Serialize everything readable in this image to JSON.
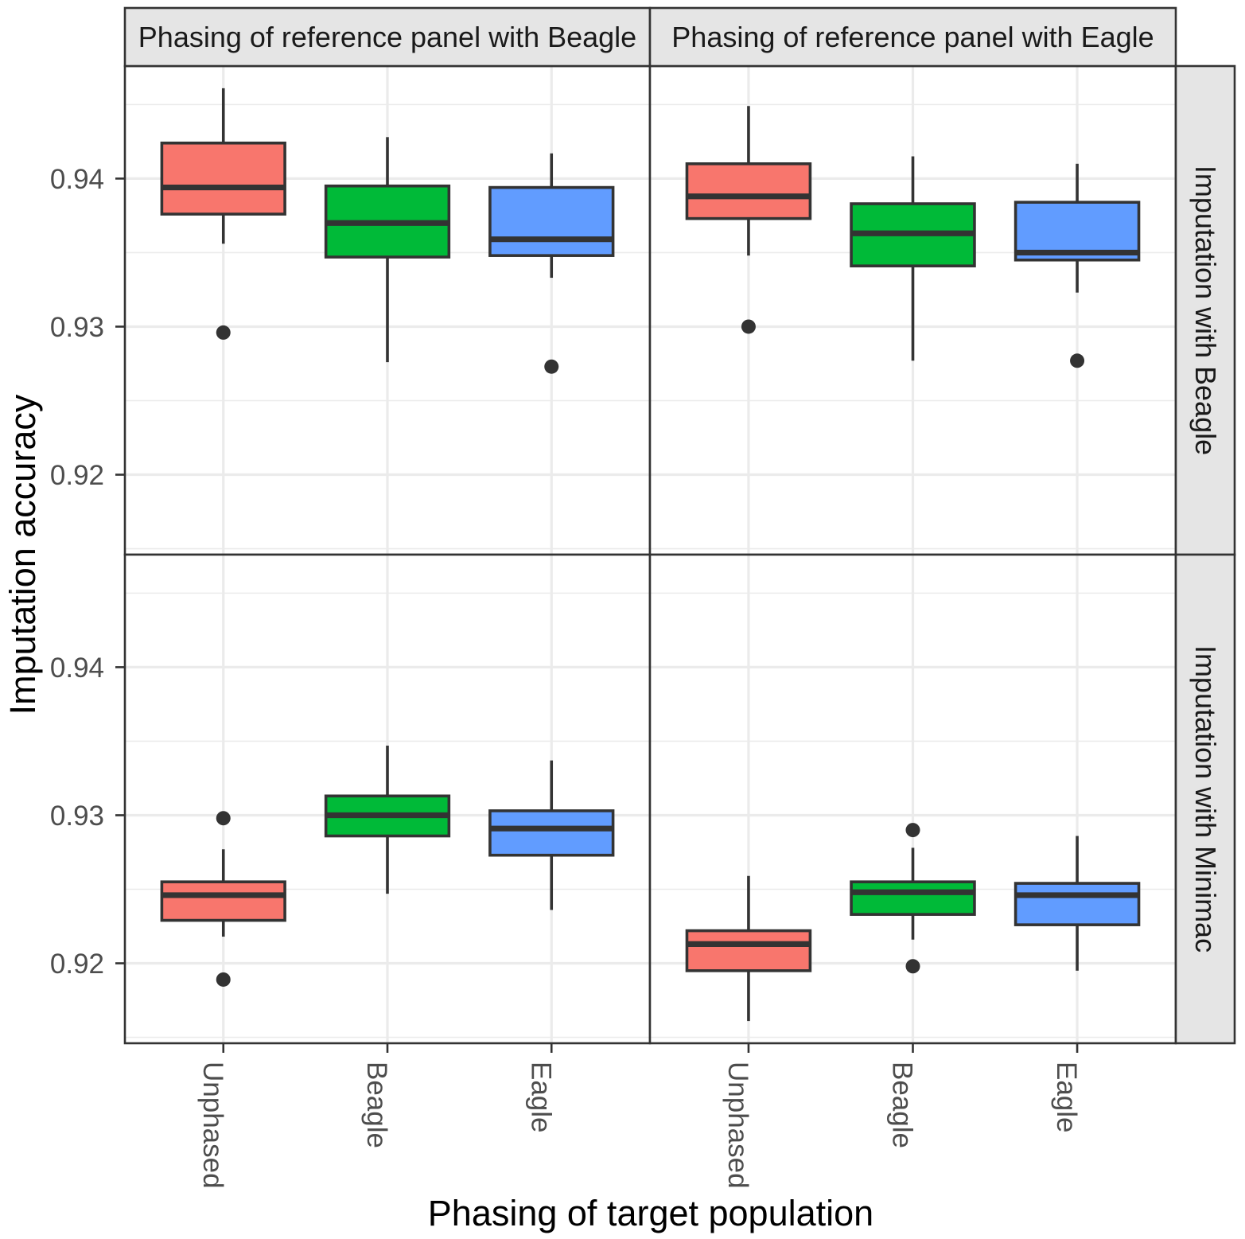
{
  "chart_data": {
    "type": "boxplot",
    "title": "",
    "xlabel": "Phasing of target population",
    "ylabel": "Imputation accuracy",
    "categories": [
      "Unphased",
      "Beagle",
      "Eagle"
    ],
    "colors": [
      "#F8766D",
      "#00BA38",
      "#619CFF"
    ],
    "facet_cols": [
      "Phasing of reference panel with Beagle",
      "Phasing of reference panel with Eagle"
    ],
    "facet_rows": [
      "Imputation with Beagle",
      "Imputation with Minimac"
    ],
    "ylim": [
      0.9146,
      0.9476
    ],
    "yticks": [
      0.92,
      0.93,
      0.94
    ],
    "ytick_labels": [
      "0.92",
      "0.93",
      "0.94"
    ],
    "grid": true,
    "panels": [
      [
        {
          "boxes": [
            {
              "whisker_low": 0.9356,
              "q1": 0.9376,
              "median": 0.9394,
              "q3": 0.9424,
              "whisker_high": 0.9461,
              "outliers": [
                0.9296
              ]
            },
            {
              "whisker_low": 0.9276,
              "q1": 0.9347,
              "median": 0.937,
              "q3": 0.9395,
              "whisker_high": 0.9428,
              "outliers": []
            },
            {
              "whisker_low": 0.9333,
              "q1": 0.9348,
              "median": 0.9359,
              "q3": 0.9394,
              "whisker_high": 0.9417,
              "outliers": [
                0.9273
              ]
            }
          ]
        },
        {
          "boxes": [
            {
              "whisker_low": 0.9348,
              "q1": 0.9373,
              "median": 0.9388,
              "q3": 0.941,
              "whisker_high": 0.9449,
              "outliers": [
                0.93
              ]
            },
            {
              "whisker_low": 0.9277,
              "q1": 0.9341,
              "median": 0.9363,
              "q3": 0.9383,
              "whisker_high": 0.9415,
              "outliers": []
            },
            {
              "whisker_low": 0.9323,
              "q1": 0.9345,
              "median": 0.935,
              "q3": 0.9384,
              "whisker_high": 0.941,
              "outliers": [
                0.9277
              ]
            }
          ]
        }
      ],
      [
        {
          "boxes": [
            {
              "whisker_low": 0.9218,
              "q1": 0.9229,
              "median": 0.9246,
              "q3": 0.9255,
              "whisker_high": 0.9277,
              "outliers": [
                0.9298,
                0.9189
              ]
            },
            {
              "whisker_low": 0.9247,
              "q1": 0.9286,
              "median": 0.93,
              "q3": 0.9313,
              "whisker_high": 0.9347,
              "outliers": []
            },
            {
              "whisker_low": 0.9236,
              "q1": 0.9273,
              "median": 0.9291,
              "q3": 0.9303,
              "whisker_high": 0.9337,
              "outliers": []
            }
          ]
        },
        {
          "boxes": [
            {
              "whisker_low": 0.9161,
              "q1": 0.9195,
              "median": 0.9213,
              "q3": 0.9222,
              "whisker_high": 0.9259,
              "outliers": []
            },
            {
              "whisker_low": 0.9216,
              "q1": 0.9233,
              "median": 0.9248,
              "q3": 0.9255,
              "whisker_high": 0.9278,
              "outliers": [
                0.929,
                0.9198
              ]
            },
            {
              "whisker_low": 0.9195,
              "q1": 0.9226,
              "median": 0.9246,
              "q3": 0.9254,
              "whisker_high": 0.9286,
              "outliers": []
            }
          ]
        }
      ]
    ]
  }
}
